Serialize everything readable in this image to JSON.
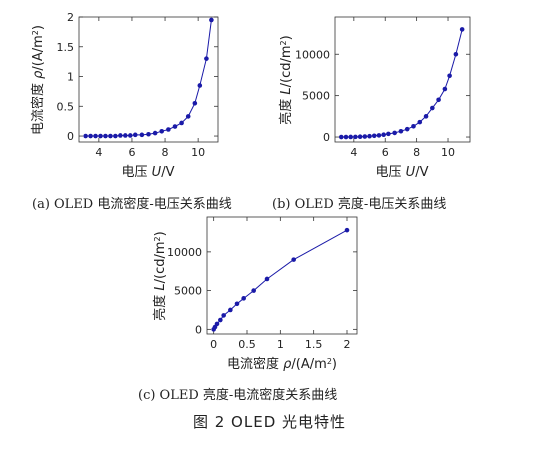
{
  "figure": {
    "caption_a": "(a) OLED 电流密度-电压关系曲线",
    "caption_b": "(b) OLED 亮度-电压关系曲线",
    "caption_c": "(c) OLED 亮度-电流密度关系曲线",
    "title": "图 2 OLED 光电特性"
  },
  "colors": {
    "series": "#1a1aa8",
    "axis": "#333333"
  },
  "chart_data": [
    {
      "id": "a",
      "type": "line",
      "xlabel_prefix": "电压 ",
      "xlabel_var": "U",
      "xlabel_unit": "/V",
      "ylabel_prefix": "电流密度 ",
      "ylabel_var": "ρ",
      "ylabel_unit": "/(A/m",
      "ylabel_sup": "2",
      "ylabel_close": ")",
      "xlim": [
        2.8,
        11.2
      ],
      "ylim": [
        -0.1,
        2.0
      ],
      "xticks": [
        4,
        6,
        8,
        10
      ],
      "yticks": [
        0,
        0.5,
        1,
        1.5,
        2
      ],
      "ytick_labels": [
        "0",
        "0.5",
        "1",
        "1.5",
        "2"
      ],
      "grid": false,
      "x": [
        3.2,
        3.5,
        3.8,
        4.1,
        4.4,
        4.7,
        5.0,
        5.3,
        5.6,
        5.9,
        6.2,
        6.6,
        7.0,
        7.4,
        7.8,
        8.2,
        8.6,
        9.0,
        9.4,
        9.8,
        10.1,
        10.5,
        10.8
      ],
      "y": [
        0,
        0,
        0,
        0,
        0,
        0,
        0,
        0.01,
        0.01,
        0.01,
        0.02,
        0.02,
        0.03,
        0.05,
        0.08,
        0.11,
        0.16,
        0.22,
        0.33,
        0.55,
        0.85,
        1.3,
        1.95
      ]
    },
    {
      "id": "b",
      "type": "line",
      "xlabel_prefix": "电压 ",
      "xlabel_var": "U",
      "xlabel_unit": "/V",
      "ylabel_prefix": "亮度 ",
      "ylabel_var": "L",
      "ylabel_unit": "/(cd/m",
      "ylabel_sup": "2",
      "ylabel_close": ")",
      "xlim": [
        2.8,
        11.4
      ],
      "ylim": [
        -600,
        14500
      ],
      "xticks": [
        4,
        6,
        8,
        10
      ],
      "yticks": [
        0,
        5000,
        10000
      ],
      "ytick_labels": [
        "0",
        "5000",
        "10000"
      ],
      "grid": false,
      "x": [
        3.2,
        3.5,
        3.8,
        4.1,
        4.4,
        4.7,
        5.0,
        5.3,
        5.6,
        5.9,
        6.2,
        6.6,
        7.0,
        7.4,
        7.8,
        8.2,
        8.6,
        9.0,
        9.4,
        9.8,
        10.1,
        10.5,
        10.9
      ],
      "y": [
        0,
        0,
        10,
        20,
        40,
        60,
        100,
        150,
        200,
        280,
        380,
        500,
        700,
        950,
        1300,
        1800,
        2500,
        3500,
        4500,
        5800,
        7400,
        10000,
        13000
      ]
    },
    {
      "id": "c",
      "type": "line",
      "xlabel_prefix": "电流密度 ",
      "xlabel_var": "ρ",
      "xlabel_unit": "/(A/m",
      "xlabel_sup": "2",
      "xlabel_close": ")",
      "ylabel_prefix": "亮度 ",
      "ylabel_var": "L",
      "ylabel_unit": "/(cd/m",
      "ylabel_sup": "2",
      "ylabel_close": ")",
      "xlim": [
        -0.1,
        2.15
      ],
      "ylim": [
        -600,
        14500
      ],
      "xticks": [
        0,
        0.5,
        1,
        1.5,
        2
      ],
      "xtick_labels": [
        "0",
        "0.5",
        "1",
        "1.5",
        "2"
      ],
      "yticks": [
        0,
        5000,
        10000
      ],
      "ytick_labels": [
        "0",
        "5000",
        "10000"
      ],
      "grid": false,
      "x": [
        0,
        0.02,
        0.05,
        0.1,
        0.15,
        0.25,
        0.35,
        0.45,
        0.6,
        0.8,
        1.2,
        2.0
      ],
      "y": [
        0,
        300,
        700,
        1200,
        1800,
        2500,
        3300,
        4000,
        5000,
        6500,
        9000,
        12800
      ]
    }
  ]
}
